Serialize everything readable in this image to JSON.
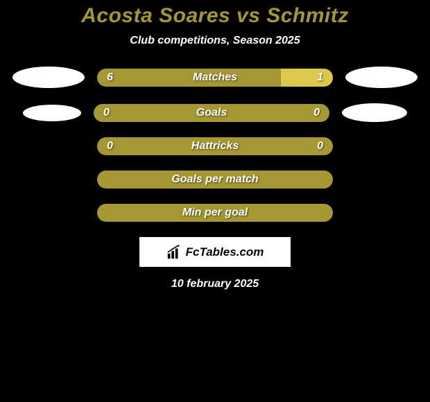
{
  "title": "Acosta Soares vs Schmitz",
  "subtitle": "Club competitions, Season 2025",
  "date": "10 february 2025",
  "colors": {
    "background": "#000000",
    "accent": "#a59832",
    "accent_light": "#dcc84a",
    "white": "#ffffff"
  },
  "logo": {
    "text": "FcTables.com",
    "icon_name": "bar-chart-icon"
  },
  "stats": [
    {
      "label": "Matches",
      "left_value": "6",
      "right_value": "1",
      "left_pct": 78,
      "right_pct": 22,
      "show_values": true,
      "left_ellipse": "big",
      "right_ellipse": "big"
    },
    {
      "label": "Goals",
      "left_value": "0",
      "right_value": "0",
      "left_pct": 100,
      "right_pct": 0,
      "show_values": true,
      "left_ellipse": "small",
      "right_ellipse": "small"
    },
    {
      "label": "Hattricks",
      "left_value": "0",
      "right_value": "0",
      "left_pct": 100,
      "right_pct": 0,
      "show_values": true,
      "left_ellipse": null,
      "right_ellipse": null
    },
    {
      "label": "Goals per match",
      "left_value": "",
      "right_value": "",
      "left_pct": 100,
      "right_pct": 0,
      "show_values": false,
      "left_ellipse": null,
      "right_ellipse": null
    },
    {
      "label": "Min per goal",
      "left_value": "",
      "right_value": "",
      "left_pct": 100,
      "right_pct": 0,
      "show_values": false,
      "left_ellipse": null,
      "right_ellipse": null
    }
  ]
}
